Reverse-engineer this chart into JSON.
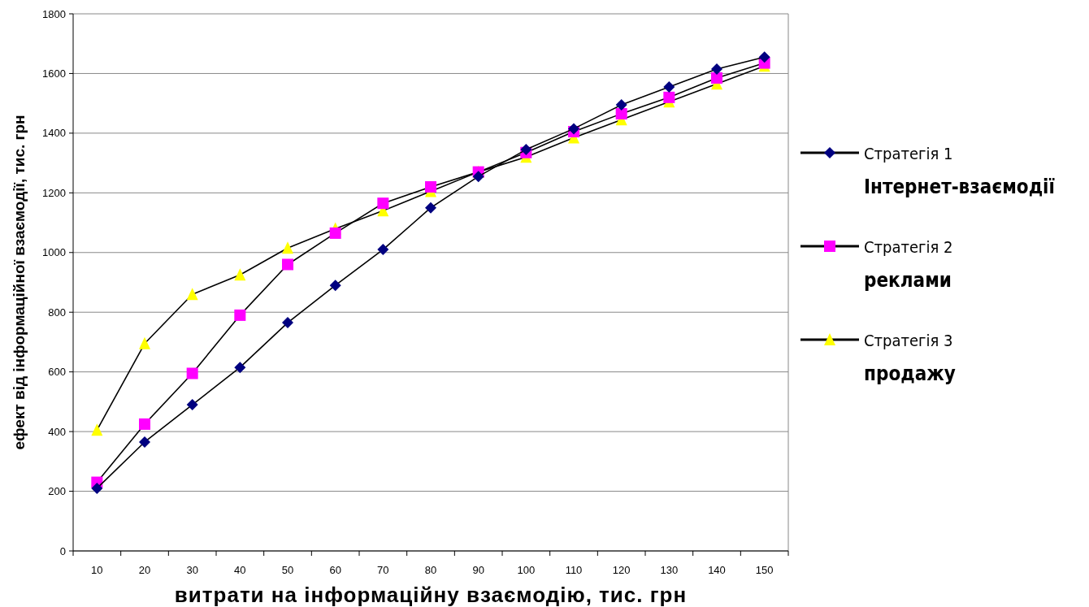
{
  "chart_data": {
    "type": "line",
    "xlabel": "витрати на інформаційну взаємодію, тис. грн",
    "ylabel": "ефект від інформаційної взаємодії, тис. грн",
    "categories": [
      "10",
      "20",
      "30",
      "40",
      "50",
      "60",
      "70",
      "80",
      "90",
      "100",
      "110",
      "120",
      "130",
      "140",
      "150"
    ],
    "ylim": [
      0,
      1800
    ],
    "yticks": [
      0,
      200,
      400,
      600,
      800,
      1000,
      1200,
      1400,
      1600,
      1800
    ],
    "grid": "y",
    "legend": "right",
    "series": [
      {
        "name": "Стратегія 1\nІнтернет-взаємодії",
        "color": "#000080",
        "marker": "diamond",
        "values": [
          210,
          365,
          490,
          615,
          765,
          890,
          1010,
          1150,
          1255,
          1345,
          1415,
          1495,
          1555,
          1615,
          1655
        ]
      },
      {
        "name": "Стратегія 2\nреклами",
        "color": "#ff00ff",
        "marker": "square",
        "values": [
          230,
          425,
          595,
          790,
          960,
          1065,
          1165,
          1220,
          1270,
          1335,
          1405,
          1465,
          1520,
          1585,
          1635
        ]
      },
      {
        "name": "Стратегія 3\nпродажу",
        "color": "#ffff00",
        "marker": "triangle",
        "values": [
          405,
          695,
          860,
          925,
          1015,
          1080,
          1140,
          1205,
          1270,
          1320,
          1385,
          1445,
          1505,
          1565,
          1625
        ]
      }
    ]
  }
}
